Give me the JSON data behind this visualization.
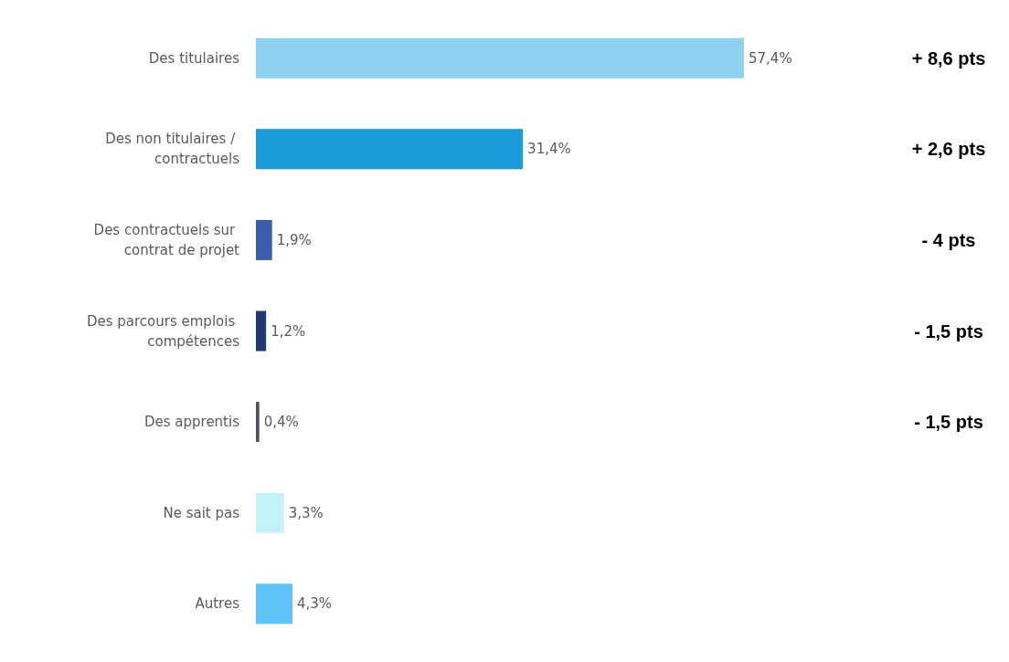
{
  "chart_data": {
    "type": "bar",
    "orientation": "horizontal",
    "categories": [
      "Des titulaires",
      "Des non titulaires / contractuels",
      "Des contractuels sur contrat de projet",
      "Des parcours emplois compétences",
      "Des apprentis",
      "Ne sait pas",
      "Autres"
    ],
    "values": [
      57.4,
      31.4,
      1.9,
      1.2,
      0.4,
      3.3,
      4.3
    ],
    "value_labels": [
      "57,4%",
      "31,4%",
      "1,9%",
      "1,2%",
      "0,4%",
      "3,3%",
      "4,3%"
    ],
    "colors": [
      "#8ed0ef",
      "#1a9ad6",
      "#3a5fa8",
      "#1e3a70",
      "#4d5360",
      "#c4f2fa",
      "#5cc3f4"
    ],
    "annotations": [
      "+ 8,6 pts",
      "+ 2,6 pts",
      "- 4 pts",
      "- 1,5 pts",
      "- 1,5 pts"
    ]
  }
}
